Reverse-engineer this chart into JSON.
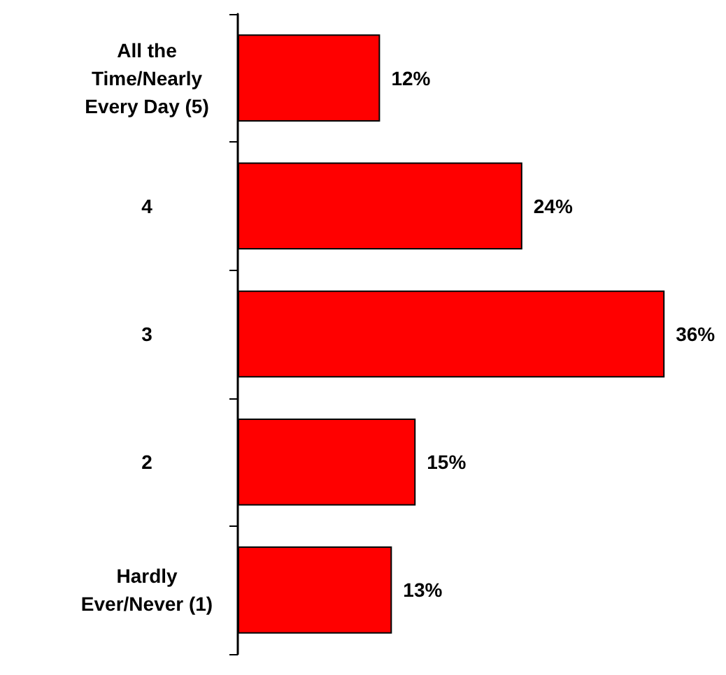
{
  "chart_data": {
    "type": "bar",
    "orientation": "horizontal",
    "categories": [
      "All the\nTime/Nearly\nEvery Day (5)",
      "4",
      "3",
      "2",
      "Hardly\nEver/Never (1)"
    ],
    "values": [
      12,
      24,
      36,
      15,
      13
    ],
    "value_labels": [
      "12%",
      "24%",
      "36%",
      "15%",
      "13%"
    ],
    "color": "#ff0000"
  }
}
